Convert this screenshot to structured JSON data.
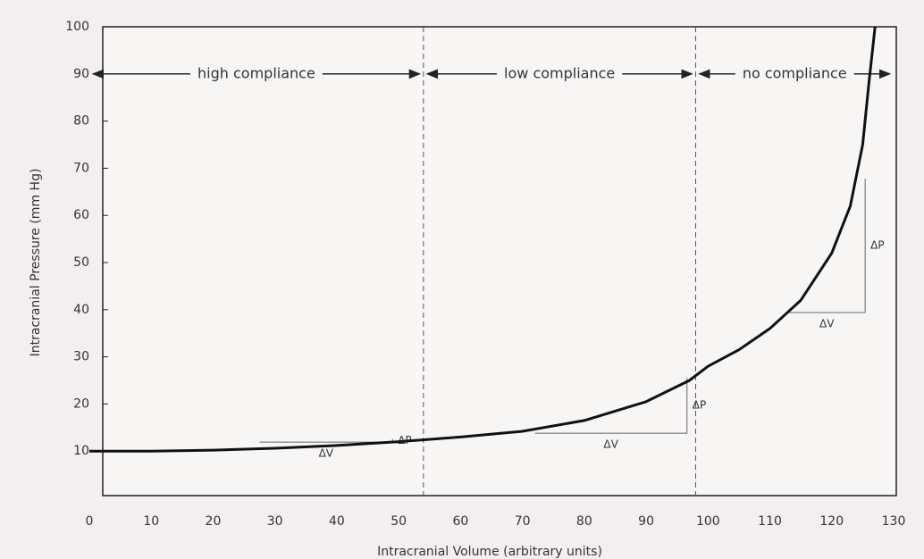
{
  "chart_data": {
    "type": "line",
    "xlabel": "Intracranial Volume (arbitrary units)",
    "ylabel": "Intracranial Pressure (mm Hg)",
    "x": [
      0,
      10,
      20,
      30,
      40,
      50,
      60,
      70,
      80,
      90,
      97,
      100,
      105,
      110,
      115,
      120,
      123,
      125,
      126,
      127
    ],
    "series": [
      {
        "color": "#111111",
        "values": [
          10,
          10,
          10.2,
          10.6,
          11.2,
          12,
          13,
          14.2,
          16.5,
          20.5,
          25,
          28,
          31.5,
          36,
          42,
          52,
          62,
          75,
          88,
          100
        ]
      }
    ],
    "xlim": [
      0,
      130
    ],
    "ylim": [
      0,
      100
    ],
    "xticks": [
      0,
      10,
      20,
      30,
      40,
      50,
      60,
      70,
      80,
      90,
      100,
      110,
      120,
      130
    ],
    "yticks": [
      10,
      20,
      30,
      40,
      50,
      60,
      70,
      80,
      90,
      100
    ],
    "dividers": [
      54,
      98
    ],
    "region_y": 90,
    "regions": [
      {
        "label": "high compliance",
        "x": [
          0,
          54
        ]
      },
      {
        "label": "low compliance",
        "x": [
          54,
          98
        ]
      },
      {
        "label": "no compliance",
        "x": [
          98,
          130
        ]
      }
    ],
    "triangles": [
      {
        "x": [
          27.5,
          49
        ],
        "y": [
          11.9,
          12.6
        ],
        "dx_label": "ΔV",
        "dy_label": "ΔP"
      },
      {
        "x": [
          72,
          96.6
        ],
        "y": [
          13.8,
          25.5
        ],
        "dx_label": "ΔV",
        "dy_label": "ΔP"
      },
      {
        "x": [
          113,
          125.4
        ],
        "y": [
          39.4,
          67.8
        ],
        "dx_label": "ΔV",
        "dy_label": "ΔP"
      }
    ]
  }
}
